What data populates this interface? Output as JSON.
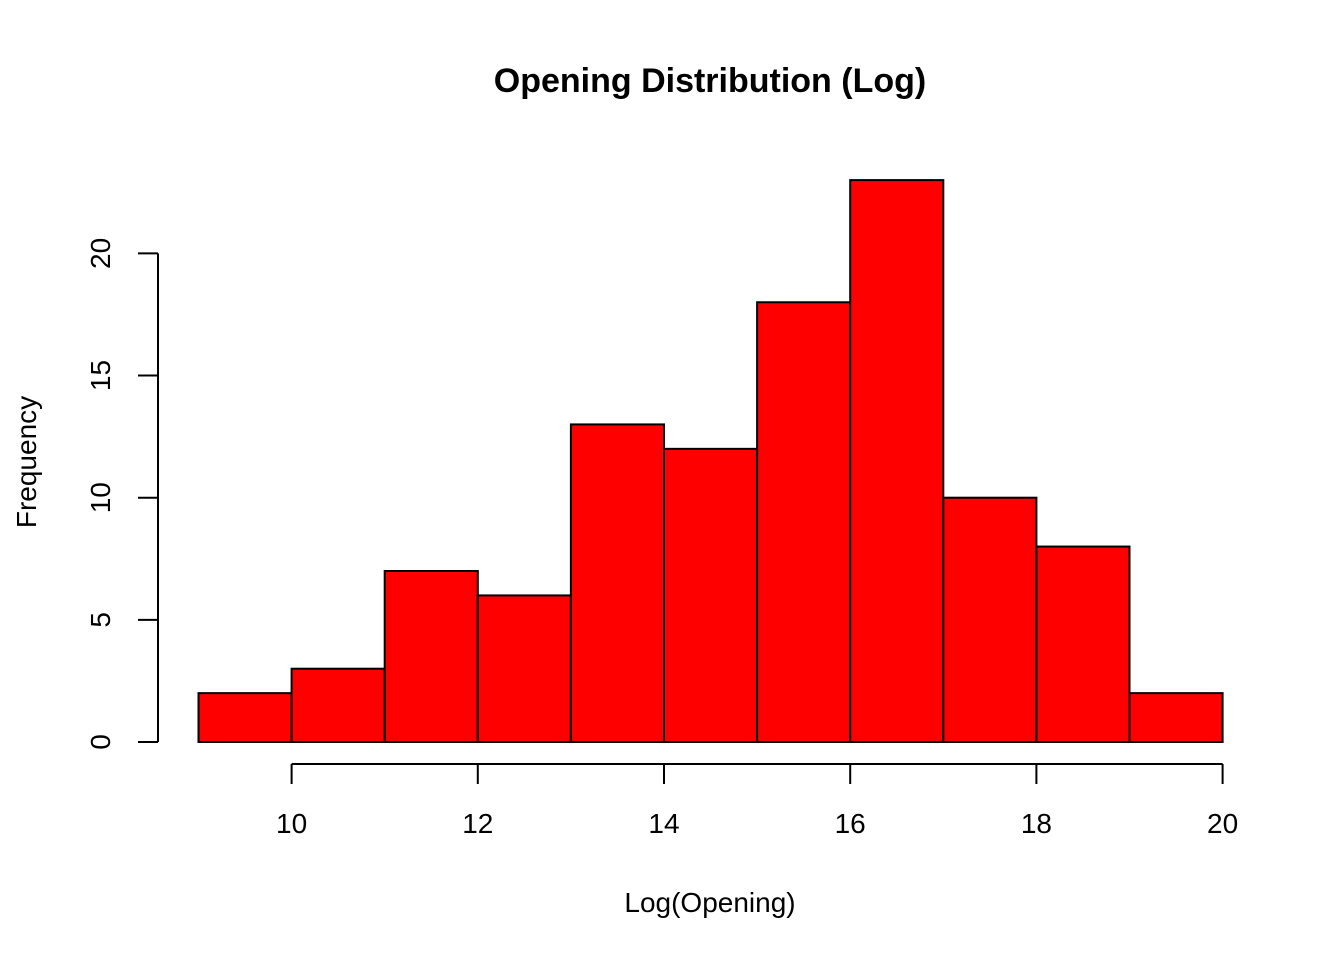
{
  "chart_data": {
    "type": "bar",
    "title": "Opening Distribution (Log)",
    "xlabel": "Log(Opening)",
    "ylabel": "Frequency",
    "bins": [
      {
        "start": 9,
        "end": 10,
        "count": 2
      },
      {
        "start": 10,
        "end": 11,
        "count": 3
      },
      {
        "start": 11,
        "end": 12,
        "count": 7
      },
      {
        "start": 12,
        "end": 13,
        "count": 6
      },
      {
        "start": 13,
        "end": 14,
        "count": 13
      },
      {
        "start": 14,
        "end": 15,
        "count": 12
      },
      {
        "start": 15,
        "end": 16,
        "count": 18
      },
      {
        "start": 16,
        "end": 17,
        "count": 23
      },
      {
        "start": 17,
        "end": 18,
        "count": 10
      },
      {
        "start": 18,
        "end": 19,
        "count": 8
      },
      {
        "start": 19,
        "end": 20,
        "count": 2
      }
    ],
    "x_ticks": [
      10,
      12,
      14,
      16,
      18,
      20
    ],
    "y_ticks": [
      0,
      5,
      10,
      15,
      20
    ],
    "xlim": [
      9,
      20
    ],
    "ylim": [
      0,
      23
    ],
    "grid": false,
    "bar_color": "#fe0000"
  }
}
